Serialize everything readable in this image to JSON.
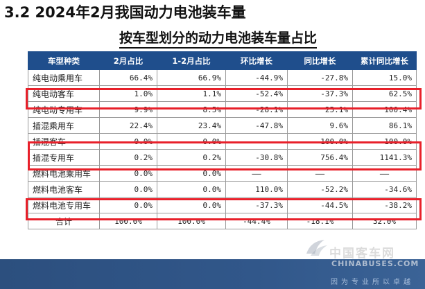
{
  "section_title": "3.2 2024年2月我国动力电池装车量",
  "table_title": "按车型划分的动力电池装车量占比",
  "table": {
    "headers": [
      "车型种类",
      "2月占比",
      "1-2月占比",
      "环比增长",
      "同比增长",
      "累计同比增长"
    ],
    "rows": [
      [
        "纯电动乘用车",
        "66.4%",
        "66.9%",
        "-44.9%",
        "-27.8%",
        "15.0%"
      ],
      [
        "纯电动客车",
        "1.0%",
        "1.1%",
        "-52.4%",
        "-37.3%",
        "62.5%"
      ],
      [
        "纯电动专用车",
        "9.9%",
        "8.5%",
        "-28.1%",
        "25.1%",
        "100.4%"
      ],
      [
        "插混乘用车",
        "22.4%",
        "23.4%",
        "-47.8%",
        "9.6%",
        "86.1%"
      ],
      [
        "插混客车",
        "0.0%",
        "0.0%",
        "——",
        "-100.0%",
        "-100.0%"
      ],
      [
        "插混专用车",
        "0.2%",
        "0.2%",
        "-30.8%",
        "756.4%",
        "1141.3%"
      ],
      [
        "燃料电池乘用车",
        "0.0%",
        "0.0%",
        "——",
        "——",
        "——"
      ],
      [
        "燃料电池客车",
        "0.0%",
        "0.0%",
        "110.0%",
        "-52.2%",
        "-34.6%"
      ],
      [
        "燃料电池专用车",
        "0.0%",
        "0.0%",
        "-37.3%",
        "-44.5%",
        "-38.2%"
      ],
      [
        "合计",
        "100.0%",
        "100.0%",
        "-44.4%",
        "-18.1%",
        "32.0%"
      ]
    ]
  },
  "watermark": {
    "brand": "中国客车网",
    "url": "CHINABUSES.COM",
    "slogan": "因为专业所以卓越"
  },
  "colors": {
    "header_bg": "#1f4e8c",
    "highlight_border": "#e8202a",
    "footer_bg": "#2c4f7e"
  }
}
